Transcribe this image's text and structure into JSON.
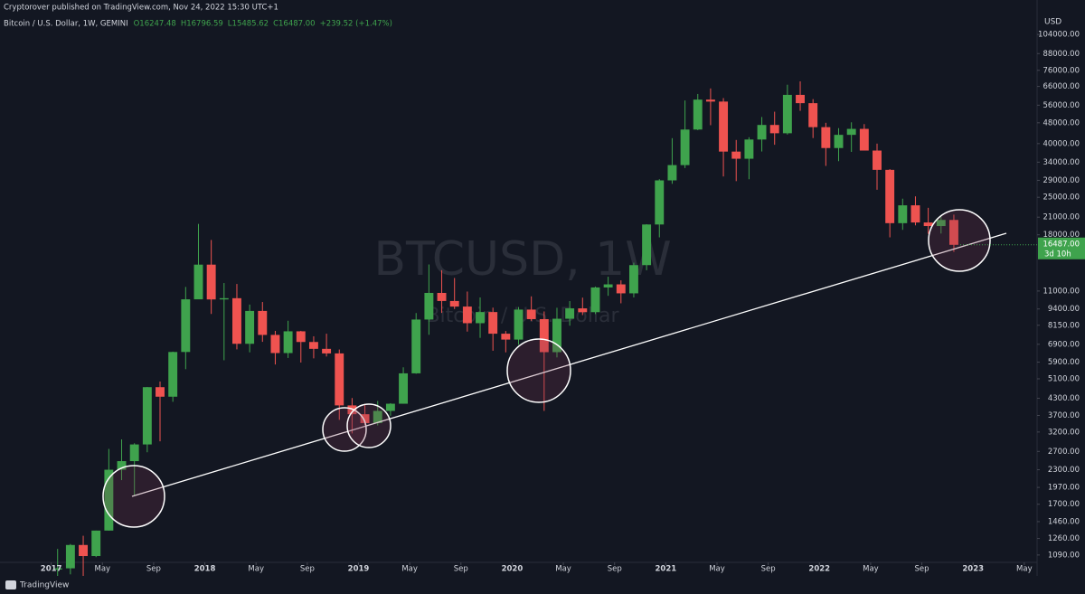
{
  "chart_data": {
    "type": "candlestick",
    "title": "Cryptorover published on TradingView.com, Nov 24, 2022 15:30 UTC+1",
    "subtitle": "Bitcoin / U.S. Dollar, 1W, GEMINI",
    "ohlc_legend": [
      "O16247.48",
      "H16796.59",
      "L15485.62",
      "C16487.00",
      "+239.52 (+1.47%)"
    ],
    "watermark": "BTCUSD, 1W",
    "watermark_sub": "Bitcoin / U.S. Dollar",
    "y_unit": "USD",
    "last_price_label": "16487.00",
    "countdown": "3d 10h",
    "footer": "TradingView",
    "up_color": "#3fa34d",
    "down_color": "#ef5350",
    "log_scale": true,
    "x": [
      "2017-01",
      "2017-02",
      "2017-03",
      "2017-04",
      "2017-05",
      "2017-06",
      "2017-07",
      "2017-08",
      "2017-09",
      "2017-10",
      "2017-11",
      "2017-12",
      "2018-01",
      "2018-02",
      "2018-03",
      "2018-04",
      "2018-05",
      "2018-06",
      "2018-07",
      "2018-08",
      "2018-09",
      "2018-10",
      "2018-11",
      "2018-12",
      "2019-01",
      "2019-02",
      "2019-03",
      "2019-04",
      "2019-05",
      "2019-06",
      "2019-07",
      "2019-08",
      "2019-09",
      "2019-10",
      "2019-11",
      "2019-12",
      "2020-01",
      "2020-02",
      "2020-03",
      "2020-04",
      "2020-05",
      "2020-06",
      "2020-07",
      "2020-08",
      "2020-09",
      "2020-10",
      "2020-11",
      "2020-12",
      "2021-01",
      "2021-02",
      "2021-03",
      "2021-04",
      "2021-05",
      "2021-06",
      "2021-07",
      "2021-08",
      "2021-09",
      "2021-10",
      "2021-11",
      "2021-12",
      "2022-01",
      "2022-02",
      "2022-03",
      "2022-04",
      "2022-05",
      "2022-06",
      "2022-07",
      "2022-08",
      "2022-09",
      "2022-10",
      "2022-11"
    ],
    "open": [
      960,
      970,
      1190,
      1080,
      1350,
      2300,
      2480,
      2870,
      4740,
      4360,
      6450,
      10230,
      13860,
      10220,
      10330,
      6930,
      9240,
      7490,
      6390,
      7730,
      7040,
      6630,
      6370,
      4040,
      3740,
      3460,
      3850,
      4100,
      5350,
      8570,
      10820,
      10080,
      9600,
      8300,
      9150,
      7570,
      7190,
      9350,
      8600,
      6440,
      8630,
      9450,
      9140,
      11350,
      11660,
      10780,
      13800,
      19700,
      28990,
      33140,
      45240,
      58800,
      57800,
      37300,
      35040,
      41460,
      47100,
      43800,
      61300,
      57000,
      46200,
      38480,
      43190,
      45510,
      37640,
      31790,
      19930,
      23300,
      20050,
      19430,
      20500
    ],
    "high": [
      1150,
      1200,
      1290,
      1350,
      2760,
      3000,
      2900,
      4750,
      4980,
      6470,
      11400,
      19800,
      17200,
      11800,
      11700,
      9770,
      9990,
      7760,
      8480,
      7760,
      7400,
      7570,
      6590,
      4310,
      4100,
      4200,
      4120,
      5640,
      9070,
      13880,
      13200,
      12330,
      10950,
      10400,
      9510,
      7750,
      9560,
      10500,
      9200,
      9500,
      10070,
      10380,
      11440,
      12470,
      12080,
      14100,
      19750,
      29300,
      41950,
      58350,
      61780,
      64850,
      59600,
      41300,
      42300,
      50500,
      52900,
      67000,
      69000,
      59050,
      48000,
      45800,
      48200,
      47450,
      40000,
      31990,
      24700,
      25200,
      22800,
      21100,
      21480
    ],
    "low": [
      750,
      920,
      890,
      1070,
      1350,
      2100,
      1830,
      2680,
      2950,
      4170,
      5550,
      10700,
      9000,
      6000,
      6600,
      6430,
      7050,
      5780,
      6120,
      5880,
      6100,
      6200,
      3560,
      3160,
      3400,
      3390,
      3690,
      4100,
      5330,
      7500,
      9080,
      9400,
      7710,
      7300,
      6520,
      6430,
      6870,
      8470,
      3850,
      6150,
      8120,
      8910,
      8990,
      10550,
      9880,
      10400,
      13200,
      17600,
      28130,
      32300,
      45000,
      47000,
      30000,
      28800,
      29280,
      37330,
      39600,
      43300,
      53300,
      42000,
      32900,
      34300,
      37200,
      37700,
      26700,
      17600,
      18800,
      19550,
      18150,
      18200,
      15500
    ],
    "close": [
      970,
      1190,
      1080,
      1350,
      2300,
      2480,
      2870,
      4740,
      4360,
      6450,
      10230,
      13860,
      10220,
      10330,
      6930,
      9240,
      7490,
      6390,
      7730,
      7040,
      6630,
      6370,
      4040,
      3740,
      3460,
      3850,
      4100,
      5350,
      8570,
      10820,
      10080,
      9600,
      8300,
      9150,
      7570,
      7190,
      9350,
      8600,
      6440,
      8630,
      9450,
      9140,
      11350,
      11660,
      10780,
      13800,
      19700,
      28990,
      33140,
      45240,
      58800,
      57800,
      37300,
      35040,
      41460,
      47100,
      43800,
      61300,
      57000,
      46200,
      38480,
      43190,
      45510,
      37640,
      31790,
      19930,
      23300,
      20050,
      19430,
      20500,
      16487
    ],
    "xlim": [
      "2016-09",
      "2023-06"
    ],
    "xticks": [
      {
        "value": "2017-01",
        "label": "2017"
      },
      {
        "value": "2017-05",
        "label": "May"
      },
      {
        "value": "2017-09",
        "label": "Sep"
      },
      {
        "value": "2018-01",
        "label": "2018"
      },
      {
        "value": "2018-05",
        "label": "May"
      },
      {
        "value": "2018-09",
        "label": "Sep"
      },
      {
        "value": "2019-01",
        "label": "2019"
      },
      {
        "value": "2019-05",
        "label": "May"
      },
      {
        "value": "2019-09",
        "label": "Sep"
      },
      {
        "value": "2020-01",
        "label": "2020"
      },
      {
        "value": "2020-05",
        "label": "May"
      },
      {
        "value": "2020-09",
        "label": "Sep"
      },
      {
        "value": "2021-01",
        "label": "2021"
      },
      {
        "value": "2021-05",
        "label": "May"
      },
      {
        "value": "2021-09",
        "label": "Sep"
      },
      {
        "value": "2022-01",
        "label": "2022"
      },
      {
        "value": "2022-05",
        "label": "May"
      },
      {
        "value": "2022-09",
        "label": "Sep"
      },
      {
        "value": "2023-01",
        "label": "2023"
      },
      {
        "value": "2023-05",
        "label": "May"
      }
    ],
    "ylim": [
      1022,
      122000
    ],
    "yticks": [
      {
        "value": 104000,
        "label": "104000.00"
      },
      {
        "value": 88000,
        "label": "88000.00"
      },
      {
        "value": 76000,
        "label": "76000.00"
      },
      {
        "value": 66000,
        "label": "66000.00"
      },
      {
        "value": 56000,
        "label": "56000.00"
      },
      {
        "value": 48000,
        "label": "48000.00"
      },
      {
        "value": 40000,
        "label": "40000.00"
      },
      {
        "value": 34000,
        "label": "34000.00"
      },
      {
        "value": 29000,
        "label": "29000.00"
      },
      {
        "value": 25000,
        "label": "25000.00"
      },
      {
        "value": 21000,
        "label": "21000.00"
      },
      {
        "value": 18000,
        "label": "18000.00"
      },
      {
        "value": 11000,
        "label": "11000.00"
      },
      {
        "value": 9400,
        "label": "9400.00"
      },
      {
        "value": 8150,
        "label": "8150.00"
      },
      {
        "value": 6900,
        "label": "6900.00"
      },
      {
        "value": 5900,
        "label": "5900.00"
      },
      {
        "value": 5100,
        "label": "5100.00"
      },
      {
        "value": 4300,
        "label": "4300.00"
      },
      {
        "value": 3700,
        "label": "3700.00"
      },
      {
        "value": 3200,
        "label": "3200.00"
      },
      {
        "value": 2700,
        "label": "2700.00"
      },
      {
        "value": 2300,
        "label": "2300.00"
      },
      {
        "value": 1970,
        "label": "1970.00"
      },
      {
        "value": 1700,
        "label": "1700.00"
      },
      {
        "value": 1460,
        "label": "1460.00"
      },
      {
        "value": 1260,
        "label": "1260.00"
      },
      {
        "value": 1090,
        "label": "1090.00"
      }
    ]
  }
}
